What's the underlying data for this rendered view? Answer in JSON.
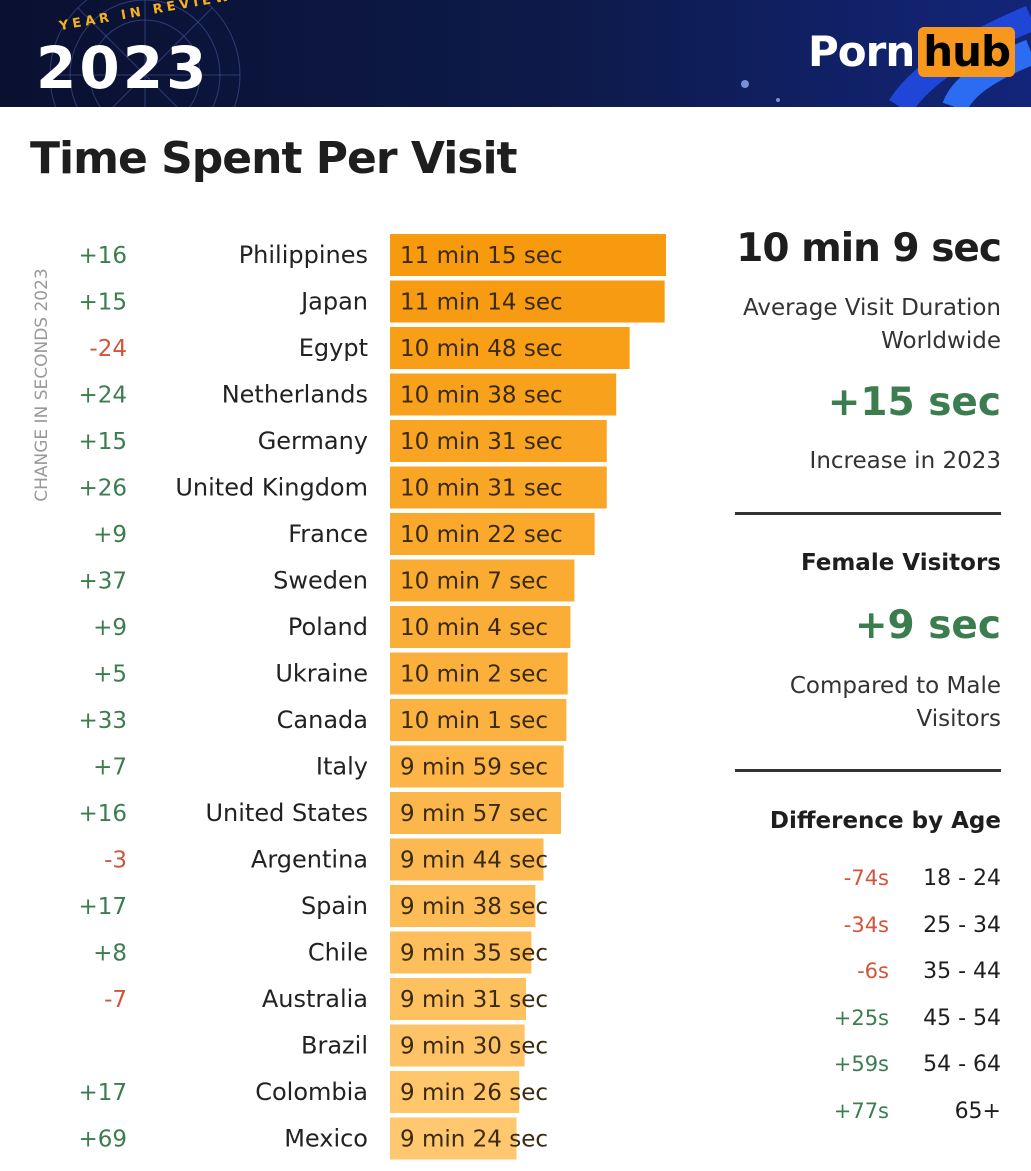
{
  "header": {
    "year_in_review": "YEAR IN REVIEW",
    "year": "2023",
    "brand_part1": "Porn",
    "brand_part2": "hub"
  },
  "title": "Time Spent Per Visit",
  "colors": {
    "positive": "#3b7d4f",
    "negative": "#d2553b",
    "bar_dark": "#f79a0d",
    "bar_light": "#ffc870",
    "accent_orange": "#f7971e",
    "header_bg": "#0d1a4a"
  },
  "chart_data": {
    "type": "bar",
    "orientation": "horizontal",
    "y_axis_label": "CHANGE IN SECONDS 2023",
    "categories": [
      "Philippines",
      "Japan",
      "Egypt",
      "Netherlands",
      "Germany",
      "United Kingdom",
      "France",
      "Sweden",
      "Poland",
      "Ukraine",
      "Canada",
      "Italy",
      "United States",
      "Argentina",
      "Spain",
      "Chile",
      "Australia",
      "Brazil",
      "Colombia",
      "Mexico"
    ],
    "values_seconds": [
      675,
      674,
      648,
      638,
      631,
      631,
      622,
      607,
      604,
      602,
      601,
      599,
      597,
      584,
      578,
      575,
      571,
      570,
      566,
      564
    ],
    "value_labels": [
      "11 min 15 sec",
      "11 min 14 sec",
      "10 min 48 sec",
      "10 min 38 sec",
      "10 min 31 sec",
      "10 min 31 sec",
      "10 min 22 sec",
      "10 min 7 sec",
      "10 min 4 sec",
      "10 min 2 sec",
      "10 min 1 sec",
      "9 min 59 sec",
      "9 min 57 sec",
      "9 min 44 sec",
      "9 min 38 sec",
      "9 min 35 sec",
      "9 min 31 sec",
      "9 min 30 sec",
      "9 min 26 sec",
      "9 min 24 sec"
    ],
    "change_labels": [
      "+16",
      "+15",
      "-24",
      "+24",
      "+15",
      "+26",
      "+9",
      "+37",
      "+9",
      "+5",
      "+33",
      "+7",
      "+16",
      "-3",
      "+17",
      "+8",
      "-7",
      "",
      "+17",
      "+69"
    ]
  },
  "summary": {
    "average_value": "10 min 9 sec",
    "average_label": "Average Visit Duration Worldwide",
    "increase_value": "+15 sec",
    "increase_label": "Increase in 2023",
    "female_title": "Female Visitors",
    "female_value": "+9 sec",
    "female_label": "Compared to Male Visitors",
    "age_title": "Difference by Age",
    "age_rows": [
      {
        "diff": "-74s",
        "range": "18 - 24",
        "sign": "neg"
      },
      {
        "diff": "-34s",
        "range": "25 - 34",
        "sign": "neg"
      },
      {
        "diff": "-6s",
        "range": "35 - 44",
        "sign": "neg"
      },
      {
        "diff": "+25s",
        "range": "45 - 54",
        "sign": "pos"
      },
      {
        "diff": "+59s",
        "range": "54 - 64",
        "sign": "pos"
      },
      {
        "diff": "+77s",
        "range": "65+",
        "sign": "pos"
      }
    ]
  }
}
